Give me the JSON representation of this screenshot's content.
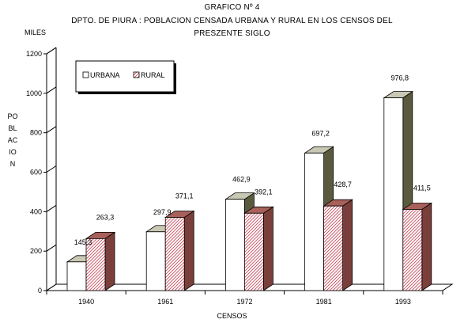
{
  "chart_data": {
    "type": "bar",
    "title_lines": [
      "GRAFICO Nº 4",
      "DPTO. DE PIURA : POBLACION CENSADA URBANA Y RURAL EN LOS CENSOS DEL",
      "PRESZENTE SIGLO"
    ],
    "units_label": "MILES",
    "xlabel": "CENSOS",
    "ylabel": "POBLACION",
    "categories": [
      "1940",
      "1961",
      "1972",
      "1981",
      "1993"
    ],
    "y_ticks": [
      "0",
      "200",
      "400",
      "600",
      "800",
      "1000",
      "1200"
    ],
    "ylim": [
      0,
      1200
    ],
    "legend_position": "top-left",
    "grid": false,
    "series": [
      {
        "name": "URBANA",
        "values": [
          145.3,
          297.9,
          462.9,
          697.2,
          976.8
        ],
        "labels": [
          "145,3",
          "297,9",
          "462,9",
          "697,2",
          "976,8"
        ],
        "color": "#ffffff"
      },
      {
        "name": "RURAL",
        "values": [
          263.3,
          371.1,
          392.1,
          428.7,
          411.5
        ],
        "labels": [
          "263,3",
          "371,1",
          "392,1",
          "428,7",
          "411,5"
        ],
        "color": "#f2c4c8"
      }
    ]
  }
}
